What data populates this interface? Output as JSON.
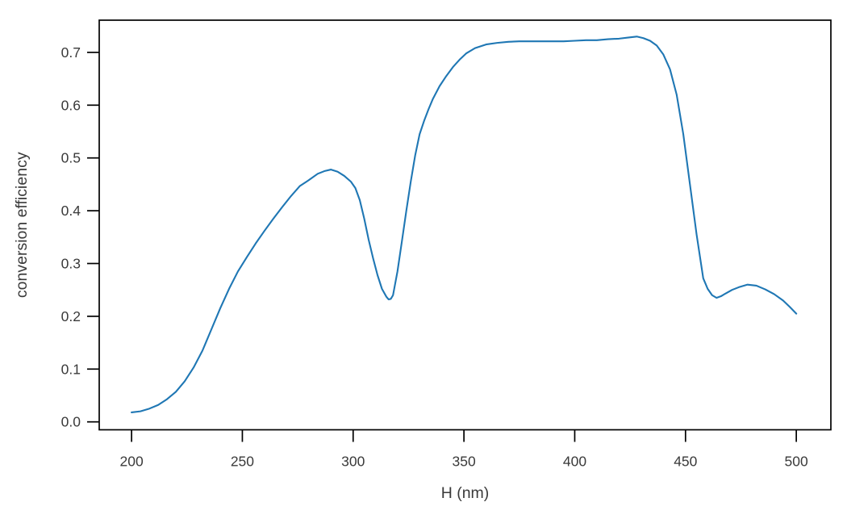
{
  "chart_data": {
    "type": "line",
    "title": "",
    "xlabel": "H (nm)",
    "ylabel": "conversion efficiency",
    "x_ticks": [
      200,
      250,
      300,
      350,
      400,
      450,
      500
    ],
    "y_ticks": [
      0.0,
      0.1,
      0.2,
      0.3,
      0.4,
      0.5,
      0.6,
      0.7
    ],
    "y_tick_decimals": 1,
    "xlim": [
      185.4,
      515.6
    ],
    "ylim": [
      -0.015,
      0.761
    ],
    "grid": false,
    "legend_position": "none",
    "series": [
      {
        "name": "conversion efficiency",
        "color": "#1f77b4",
        "points": [
          [
            200,
            0.018
          ],
          [
            204,
            0.02
          ],
          [
            208,
            0.025
          ],
          [
            212,
            0.032
          ],
          [
            216,
            0.043
          ],
          [
            220,
            0.057
          ],
          [
            224,
            0.077
          ],
          [
            228,
            0.103
          ],
          [
            232,
            0.135
          ],
          [
            236,
            0.175
          ],
          [
            240,
            0.215
          ],
          [
            244,
            0.252
          ],
          [
            248,
            0.285
          ],
          [
            252,
            0.312
          ],
          [
            256,
            0.338
          ],
          [
            260,
            0.362
          ],
          [
            264,
            0.385
          ],
          [
            268,
            0.407
          ],
          [
            272,
            0.428
          ],
          [
            276,
            0.447
          ],
          [
            280,
            0.458
          ],
          [
            284,
            0.47
          ],
          [
            287,
            0.475
          ],
          [
            290,
            0.478
          ],
          [
            293,
            0.474
          ],
          [
            296,
            0.466
          ],
          [
            299,
            0.455
          ],
          [
            301,
            0.443
          ],
          [
            303,
            0.42
          ],
          [
            305,
            0.385
          ],
          [
            307,
            0.345
          ],
          [
            309,
            0.31
          ],
          [
            311,
            0.278
          ],
          [
            313,
            0.252
          ],
          [
            315,
            0.237
          ],
          [
            316,
            0.232
          ],
          [
            317,
            0.233
          ],
          [
            318,
            0.24
          ],
          [
            320,
            0.285
          ],
          [
            322,
            0.342
          ],
          [
            324,
            0.4
          ],
          [
            326,
            0.455
          ],
          [
            328,
            0.505
          ],
          [
            330,
            0.545
          ],
          [
            332,
            0.57
          ],
          [
            334,
            0.592
          ],
          [
            336,
            0.612
          ],
          [
            339,
            0.636
          ],
          [
            342,
            0.655
          ],
          [
            345,
            0.672
          ],
          [
            348,
            0.686
          ],
          [
            351,
            0.698
          ],
          [
            355,
            0.708
          ],
          [
            360,
            0.715
          ],
          [
            365,
            0.718
          ],
          [
            370,
            0.72
          ],
          [
            375,
            0.721
          ],
          [
            380,
            0.721
          ],
          [
            385,
            0.721
          ],
          [
            390,
            0.721
          ],
          [
            395,
            0.721
          ],
          [
            400,
            0.722
          ],
          [
            405,
            0.723
          ],
          [
            410,
            0.723
          ],
          [
            415,
            0.725
          ],
          [
            420,
            0.726
          ],
          [
            424,
            0.728
          ],
          [
            428,
            0.73
          ],
          [
            431,
            0.727
          ],
          [
            434,
            0.722
          ],
          [
            437,
            0.713
          ],
          [
            440,
            0.696
          ],
          [
            443,
            0.668
          ],
          [
            446,
            0.62
          ],
          [
            449,
            0.545
          ],
          [
            452,
            0.45
          ],
          [
            455,
            0.355
          ],
          [
            458,
            0.272
          ],
          [
            460,
            0.252
          ],
          [
            462,
            0.24
          ],
          [
            464,
            0.235
          ],
          [
            466,
            0.238
          ],
          [
            468,
            0.243
          ],
          [
            471,
            0.25
          ],
          [
            474,
            0.255
          ],
          [
            478,
            0.26
          ],
          [
            482,
            0.258
          ],
          [
            486,
            0.251
          ],
          [
            490,
            0.242
          ],
          [
            494,
            0.23
          ],
          [
            497,
            0.218
          ],
          [
            500,
            0.205
          ]
        ]
      }
    ],
    "colors": {
      "line": "#1f77b4",
      "axis": "#000000",
      "text": "#3a3a3a",
      "background": "#ffffff"
    }
  }
}
